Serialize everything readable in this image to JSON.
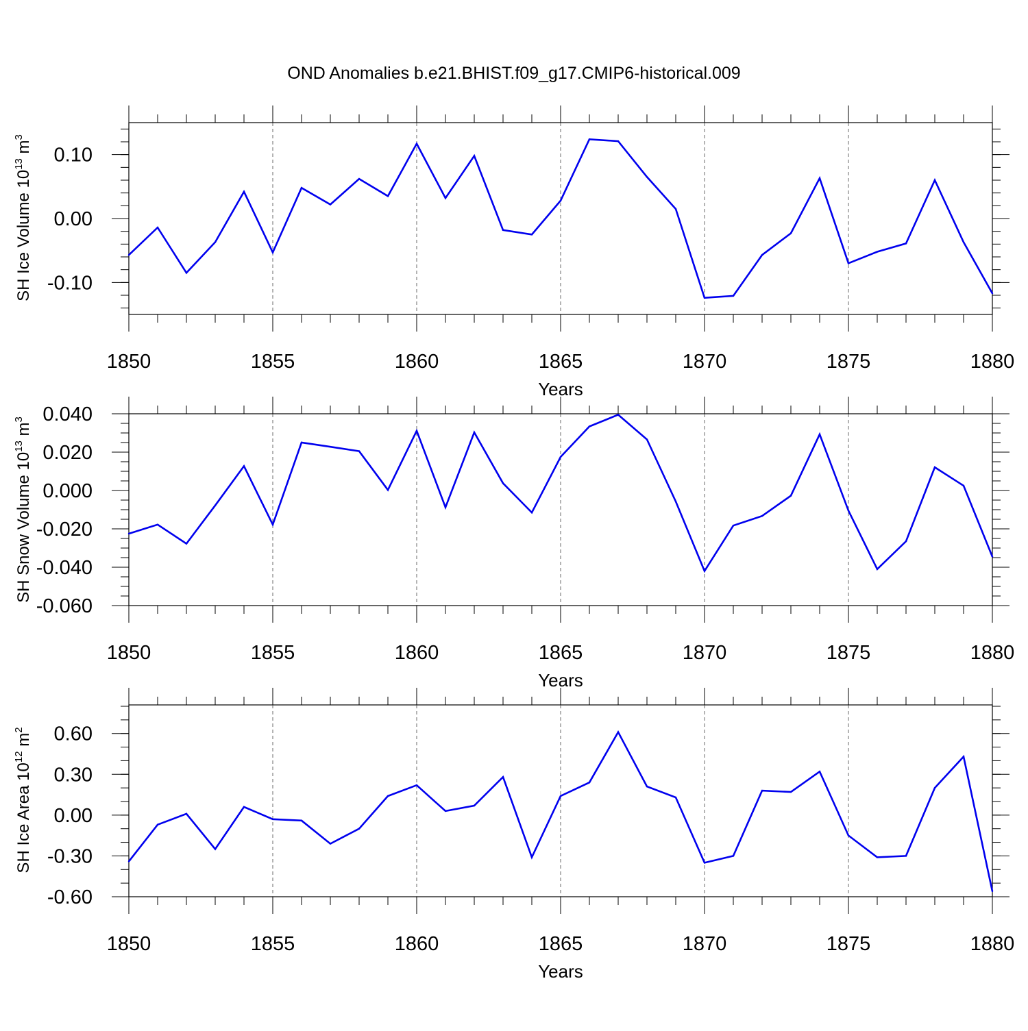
{
  "title": "OND Anomalies b.e21.BHIST.f09_g17.CMIP6-historical.009",
  "line_color": "#0000ee",
  "chart_data": [
    {
      "type": "line",
      "id": "ice-volume",
      "ylabel": "SH Ice Volume 10",
      "ylabel_exp": "13",
      "ylabel_unit": " m",
      "ylabel_unit_exp": "3",
      "xlabel": "Years",
      "xlim": [
        1850,
        1880
      ],
      "ylim": [
        -0.15,
        0.15
      ],
      "x_ticks": [
        1850,
        1855,
        1860,
        1865,
        1870,
        1875,
        1880
      ],
      "x_tick_labels": [
        "1850",
        "1855",
        "1860",
        "1865",
        "1870",
        "1875",
        "1880"
      ],
      "y_ticks": [
        -0.1,
        0.0,
        0.1
      ],
      "y_tick_labels": [
        "-0.10",
        "0.00",
        "0.10"
      ],
      "y_minor_step": 0.02,
      "x": [
        1850,
        1851,
        1852,
        1853,
        1854,
        1855,
        1856,
        1857,
        1858,
        1859,
        1860,
        1861,
        1862,
        1863,
        1864,
        1865,
        1866,
        1867,
        1868,
        1869,
        1870,
        1871,
        1872,
        1873,
        1874,
        1875,
        1876,
        1877,
        1878,
        1879,
        1880
      ],
      "values": [
        -0.057,
        -0.014,
        -0.085,
        -0.037,
        0.042,
        -0.053,
        0.048,
        0.022,
        0.062,
        0.035,
        0.117,
        0.032,
        0.098,
        -0.018,
        -0.025,
        0.028,
        0.124,
        0.121,
        0.065,
        0.015,
        -0.124,
        -0.121,
        -0.057,
        -0.023,
        0.063,
        -0.07,
        -0.052,
        -0.039,
        0.06,
        -0.037,
        -0.117
      ]
    },
    {
      "type": "line",
      "id": "snow-volume",
      "ylabel": "SH Snow Volume 10",
      "ylabel_exp": "13",
      "ylabel_unit": " m",
      "ylabel_unit_exp": "3",
      "xlabel": "Years",
      "xlim": [
        1850,
        1880
      ],
      "ylim": [
        -0.06,
        0.04
      ],
      "x_ticks": [
        1850,
        1855,
        1860,
        1865,
        1870,
        1875,
        1880
      ],
      "x_tick_labels": [
        "1850",
        "1855",
        "1860",
        "1865",
        "1870",
        "1875",
        "1880"
      ],
      "y_ticks": [
        -0.06,
        -0.04,
        -0.02,
        0.0,
        0.02,
        0.04
      ],
      "y_tick_labels": [
        "-0.060",
        "-0.040",
        "-0.020",
        "0.000",
        "0.020",
        "0.040"
      ],
      "y_minor_step": 0.005,
      "x": [
        1850,
        1851,
        1852,
        1853,
        1854,
        1855,
        1856,
        1857,
        1858,
        1859,
        1860,
        1861,
        1862,
        1863,
        1864,
        1865,
        1866,
        1867,
        1868,
        1869,
        1870,
        1871,
        1872,
        1873,
        1874,
        1875,
        1876,
        1877,
        1878,
        1879,
        1880
      ],
      "values": [
        -0.0225,
        -0.0178,
        -0.0277,
        -0.0078,
        0.0127,
        -0.0178,
        0.025,
        0.0228,
        0.0205,
        0.0003,
        0.0311,
        -0.0088,
        0.0303,
        0.0038,
        -0.0115,
        0.0175,
        0.0334,
        0.0395,
        0.0266,
        -0.0057,
        -0.042,
        -0.0183,
        -0.0133,
        -0.0027,
        0.0293,
        -0.0105,
        -0.041,
        -0.0265,
        0.0121,
        0.0025,
        -0.0345
      ]
    },
    {
      "type": "line",
      "id": "ice-area",
      "ylabel": "SH Ice Area 10",
      "ylabel_exp": "12",
      "ylabel_unit": " m",
      "ylabel_unit_exp": "2",
      "xlabel": "Years",
      "xlim": [
        1850,
        1880
      ],
      "ylim": [
        -0.6,
        0.81
      ],
      "x_ticks": [
        1850,
        1855,
        1860,
        1865,
        1870,
        1875,
        1880
      ],
      "x_tick_labels": [
        "1850",
        "1855",
        "1860",
        "1865",
        "1870",
        "1875",
        "1880"
      ],
      "y_ticks": [
        -0.6,
        -0.3,
        0.0,
        0.3,
        0.6
      ],
      "y_tick_labels": [
        "-0.60",
        "-0.30",
        "0.00",
        "0.30",
        "0.60"
      ],
      "y_minor_step": 0.1,
      "x": [
        1850,
        1851,
        1852,
        1853,
        1854,
        1855,
        1856,
        1857,
        1858,
        1859,
        1860,
        1861,
        1862,
        1863,
        1864,
        1865,
        1866,
        1867,
        1868,
        1869,
        1870,
        1871,
        1872,
        1873,
        1874,
        1875,
        1876,
        1877,
        1878,
        1879,
        1880
      ],
      "values": [
        -0.34,
        -0.07,
        0.01,
        -0.25,
        0.06,
        -0.03,
        -0.04,
        -0.21,
        -0.1,
        0.14,
        0.22,
        0.03,
        0.07,
        0.28,
        -0.31,
        0.14,
        0.24,
        0.61,
        0.21,
        0.13,
        -0.35,
        -0.3,
        0.18,
        0.17,
        0.32,
        -0.15,
        -0.31,
        -0.3,
        0.2,
        0.43,
        -0.56
      ]
    }
  ]
}
